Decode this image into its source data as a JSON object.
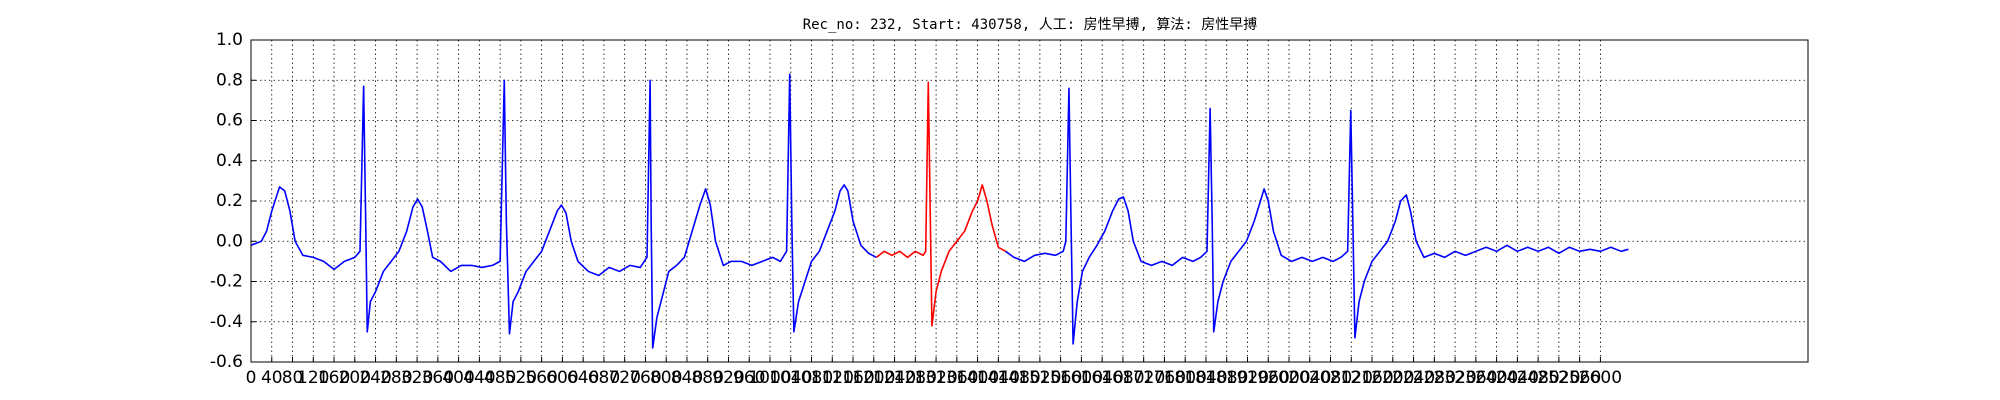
{
  "chart_data": {
    "type": "line",
    "title": "Rec_no: 232, Start: 430758, 人工: 房性早搏, 算法: 房性早搏",
    "xlim": [
      0,
      3000
    ],
    "ylim": [
      -0.6,
      1.0
    ],
    "xticks": [
      0,
      40,
      80,
      120,
      160,
      200,
      240,
      280,
      320,
      360,
      400,
      440,
      480,
      520,
      560,
      600,
      640,
      680,
      720,
      760,
      800,
      840,
      880,
      920,
      960,
      1000,
      1040,
      1080,
      1120,
      1160,
      1200,
      1240,
      1280,
      1320,
      1360,
      1400,
      1440,
      1480,
      1520,
      1560,
      1600,
      1640,
      1680,
      1720,
      1760,
      1800,
      1840,
      1880,
      1920,
      1960,
      2000,
      2040,
      2080,
      2120,
      2160,
      2200,
      2240,
      2280,
      2320,
      2360,
      2400,
      2440,
      2480,
      2520,
      2560,
      2600
    ],
    "yticks": [
      -0.6,
      -0.4,
      -0.2,
      {
        "value": 0,
        "label": "0.0"
      },
      0.2,
      0.4,
      0.6,
      0.8,
      {
        "value": 1,
        "label": "1.0"
      }
    ],
    "grid": true,
    "series": [
      {
        "color": "#0000ff",
        "x": [
          0,
          10,
          20,
          30,
          40,
          55,
          65,
          75,
          85,
          100,
          120,
          140,
          160,
          180,
          200,
          210,
          217,
          221,
          224,
          230,
          240,
          255,
          270,
          285,
          300,
          312,
          321,
          330,
          340,
          350,
          365,
          385,
          405,
          425,
          445,
          465,
          480,
          488,
          492,
          498,
          505,
          515,
          530,
          545,
          560,
          575,
          590,
          598,
          607,
          617,
          630,
          650,
          670,
          690,
          710,
          730,
          750,
          763,
          769,
          771,
          774,
          782,
          792,
          805,
          820,
          835,
          850,
          865,
          876,
          885,
          895,
          910,
          925,
          945,
          965,
          985,
          1005,
          1020,
          1032,
          1038,
          1042,
          1046,
          1055,
          1065,
          1080,
          1095,
          1110,
          1125,
          1135,
          1143,
          1150,
          1160,
          1175,
          1190,
          1205,
          1300,
          1454,
          1470,
          1490,
          1510,
          1530,
          1550,
          1565,
          1570,
          1576,
          1580,
          1584,
          1592,
          1602,
          1615,
          1630,
          1645,
          1660,
          1672,
          1681,
          1690,
          1700,
          1715,
          1735,
          1755,
          1775,
          1795,
          1815,
          1830,
          1842,
          1848,
          1852,
          1855,
          1863,
          1873,
          1888,
          1903,
          1918,
          1933,
          1945,
          1952,
          1960,
          1970,
          1985,
          2005,
          2025,
          2045,
          2065,
          2085,
          2100,
          2113,
          2119,
          2123,
          2127,
          2135,
          2145,
          2160,
          2175,
          2190,
          2205,
          2215,
          2226,
          2234,
          2245,
          2260,
          2280,
          2300,
          2320,
          2340,
          2360,
          2380,
          2400,
          2420,
          2440,
          2460,
          2480,
          2500,
          2520,
          2540,
          2560,
          2580,
          2600,
          2620,
          2640,
          2654
        ],
        "values": [
          -0.02,
          -0.01,
          0.0,
          0.05,
          0.15,
          0.27,
          0.25,
          0.15,
          0.0,
          -0.07,
          -0.08,
          -0.1,
          -0.14,
          -0.1,
          -0.08,
          -0.05,
          0.77,
          0.1,
          -0.45,
          -0.3,
          -0.25,
          -0.15,
          -0.1,
          -0.05,
          0.05,
          0.17,
          0.21,
          0.17,
          0.05,
          -0.08,
          -0.1,
          -0.15,
          -0.12,
          -0.12,
          -0.13,
          -0.12,
          -0.1,
          0.8,
          0.1,
          -0.46,
          -0.3,
          -0.25,
          -0.15,
          -0.1,
          -0.05,
          0.05,
          0.15,
          0.18,
          0.14,
          0.0,
          -0.1,
          -0.15,
          -0.17,
          -0.13,
          -0.15,
          -0.12,
          -0.13,
          -0.08,
          0.8,
          0.1,
          -0.53,
          -0.38,
          -0.28,
          -0.15,
          -0.12,
          -0.08,
          0.05,
          0.18,
          0.26,
          0.18,
          0.0,
          -0.12,
          -0.1,
          -0.1,
          -0.12,
          -0.1,
          -0.08,
          -0.1,
          -0.05,
          0.83,
          0.1,
          -0.45,
          -0.3,
          -0.22,
          -0.1,
          -0.05,
          0.05,
          0.15,
          0.25,
          0.28,
          0.25,
          0.1,
          -0.02,
          -0.06,
          -0.08,
          null,
          -0.05,
          -0.08,
          -0.1,
          -0.07,
          -0.06,
          -0.07,
          -0.05,
          0.0,
          0.76,
          0.1,
          -0.51,
          -0.3,
          -0.15,
          -0.08,
          -0.02,
          0.05,
          0.15,
          0.21,
          0.22,
          0.15,
          0.0,
          -0.1,
          -0.12,
          -0.1,
          -0.12,
          -0.08,
          -0.1,
          -0.08,
          -0.05,
          0.66,
          0.1,
          -0.45,
          -0.3,
          -0.2,
          -0.1,
          -0.05,
          0.0,
          0.1,
          0.2,
          0.26,
          0.2,
          0.05,
          -0.07,
          -0.1,
          -0.08,
          -0.1,
          -0.08,
          -0.1,
          -0.08,
          -0.05,
          0.65,
          0.1,
          -0.48,
          -0.3,
          -0.2,
          -0.1,
          -0.05,
          0.0,
          0.1,
          0.2,
          0.23,
          0.15,
          0.0,
          -0.08,
          -0.06,
          -0.08,
          -0.05,
          -0.07,
          -0.05,
          -0.03,
          -0.05,
          -0.02,
          -0.05,
          -0.03,
          -0.05,
          -0.03,
          -0.06,
          -0.03,
          -0.05,
          -0.04,
          -0.05,
          -0.03,
          -0.05,
          -0.04
        ]
      },
      {
        "color": "#ff0000",
        "x": [
          1205,
          1220,
          1235,
          1250,
          1265,
          1280,
          1295,
          1300,
          1305,
          1309,
          1312,
          1320,
          1330,
          1345,
          1360,
          1375,
          1390,
          1400,
          1409,
          1418,
          1428,
          1440,
          1454
        ],
        "values": [
          -0.08,
          -0.05,
          -0.07,
          -0.05,
          -0.08,
          -0.05,
          -0.07,
          -0.05,
          0.79,
          0.1,
          -0.42,
          -0.25,
          -0.15,
          -0.05,
          0.0,
          0.05,
          0.15,
          0.2,
          0.28,
          0.2,
          0.08,
          -0.03,
          -0.05
        ]
      }
    ]
  }
}
